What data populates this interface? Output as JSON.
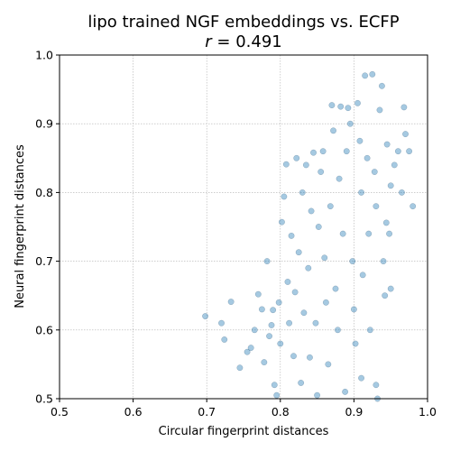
{
  "chart_data": {
    "type": "scatter",
    "title": "lipo trained NGF embeddings vs. ECFP",
    "subtitle_prefix": "r",
    "subtitle_value": " = 0.491",
    "xlabel": "Circular fingerprint distances",
    "ylabel": "Neural fingerprint distances",
    "xlim": [
      0.5,
      1.0
    ],
    "ylim": [
      0.5,
      1.0
    ],
    "xticks": [
      "0.5",
      "0.6",
      "0.7",
      "0.8",
      "0.9",
      "1.0"
    ],
    "yticks": [
      "0.5",
      "0.6",
      "0.7",
      "0.8",
      "0.9",
      "1.0"
    ],
    "grid": true,
    "point_color": "#1f77b4",
    "point_alpha": 0.4,
    "points": [
      [
        0.698,
        0.62
      ],
      [
        0.72,
        0.61
      ],
      [
        0.733,
        0.641
      ],
      [
        0.724,
        0.586
      ],
      [
        0.745,
        0.545
      ],
      [
        0.755,
        0.568
      ],
      [
        0.76,
        0.574
      ],
      [
        0.765,
        0.6
      ],
      [
        0.77,
        0.652
      ],
      [
        0.775,
        0.63
      ],
      [
        0.778,
        0.553
      ],
      [
        0.782,
        0.7
      ],
      [
        0.785,
        0.591
      ],
      [
        0.788,
        0.607
      ],
      [
        0.79,
        0.629
      ],
      [
        0.792,
        0.52
      ],
      [
        0.795,
        0.505
      ],
      [
        0.798,
        0.64
      ],
      [
        0.8,
        0.58
      ],
      [
        0.802,
        0.757
      ],
      [
        0.805,
        0.794
      ],
      [
        0.808,
        0.841
      ],
      [
        0.81,
        0.67
      ],
      [
        0.812,
        0.61
      ],
      [
        0.815,
        0.737
      ],
      [
        0.818,
        0.562
      ],
      [
        0.82,
        0.655
      ],
      [
        0.822,
        0.85
      ],
      [
        0.825,
        0.713
      ],
      [
        0.828,
        0.523
      ],
      [
        0.83,
        0.8
      ],
      [
        0.832,
        0.625
      ],
      [
        0.835,
        0.84
      ],
      [
        0.838,
        0.69
      ],
      [
        0.84,
        0.56
      ],
      [
        0.842,
        0.773
      ],
      [
        0.845,
        0.858
      ],
      [
        0.848,
        0.61
      ],
      [
        0.85,
        0.505
      ],
      [
        0.852,
        0.75
      ],
      [
        0.855,
        0.83
      ],
      [
        0.858,
        0.86
      ],
      [
        0.86,
        0.705
      ],
      [
        0.862,
        0.64
      ],
      [
        0.865,
        0.55
      ],
      [
        0.868,
        0.78
      ],
      [
        0.87,
        0.927
      ],
      [
        0.872,
        0.89
      ],
      [
        0.875,
        0.66
      ],
      [
        0.878,
        0.6
      ],
      [
        0.88,
        0.82
      ],
      [
        0.882,
        0.925
      ],
      [
        0.885,
        0.74
      ],
      [
        0.888,
        0.51
      ],
      [
        0.89,
        0.86
      ],
      [
        0.892,
        0.923
      ],
      [
        0.895,
        0.9
      ],
      [
        0.898,
        0.7
      ],
      [
        0.9,
        0.63
      ],
      [
        0.902,
        0.58
      ],
      [
        0.905,
        0.93
      ],
      [
        0.908,
        0.875
      ],
      [
        0.91,
        0.8
      ],
      [
        0.912,
        0.68
      ],
      [
        0.915,
        0.97
      ],
      [
        0.918,
        0.85
      ],
      [
        0.92,
        0.74
      ],
      [
        0.922,
        0.6
      ],
      [
        0.925,
        0.972
      ],
      [
        0.928,
        0.83
      ],
      [
        0.93,
        0.78
      ],
      [
        0.932,
        0.5
      ],
      [
        0.935,
        0.92
      ],
      [
        0.938,
        0.955
      ],
      [
        0.94,
        0.7
      ],
      [
        0.942,
        0.65
      ],
      [
        0.945,
        0.87
      ],
      [
        0.948,
        0.74
      ],
      [
        0.95,
        0.66
      ],
      [
        0.955,
        0.84
      ],
      [
        0.96,
        0.86
      ],
      [
        0.965,
        0.8
      ],
      [
        0.97,
        0.885
      ],
      [
        0.975,
        0.86
      ],
      [
        0.98,
        0.78
      ],
      [
        0.968,
        0.924
      ],
      [
        0.95,
        0.81
      ],
      [
        0.944,
        0.756
      ],
      [
        0.93,
        0.52
      ],
      [
        0.91,
        0.53
      ]
    ]
  }
}
